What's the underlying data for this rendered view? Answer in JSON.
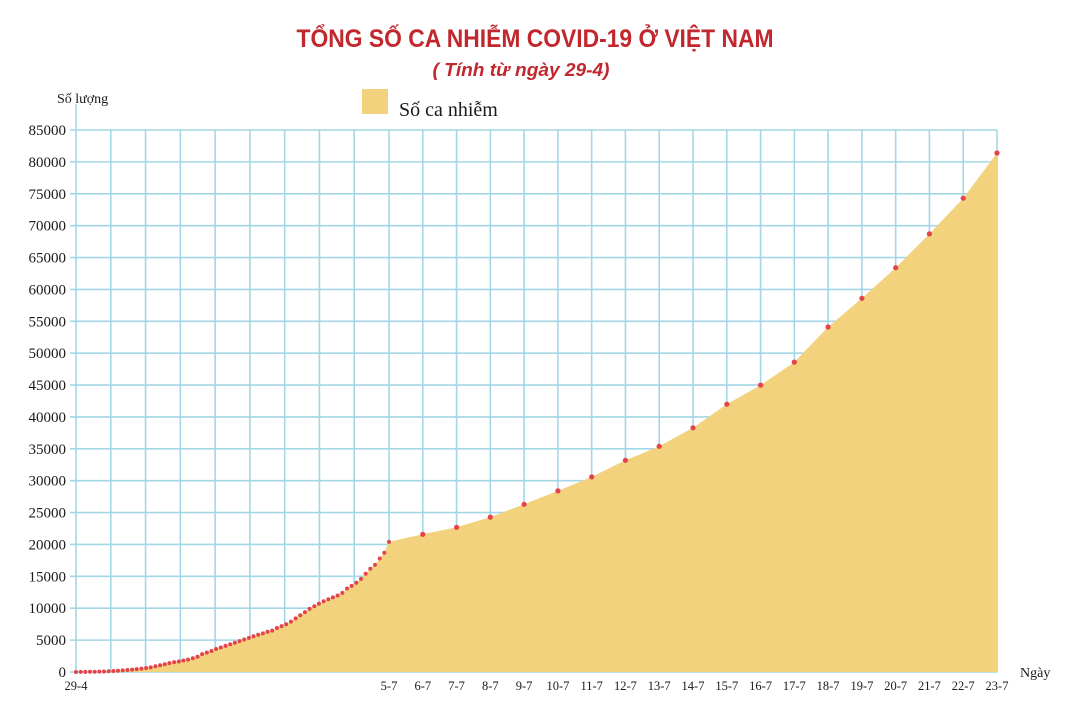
{
  "colors": {
    "title": "#c1272d",
    "grid": "#a3d6e6"
  },
  "chart_data": {
    "type": "area",
    "title": "TỔNG SỐ CA NHIỄM COVID-19 Ở VIỆT NAM",
    "subtitle": "( Tính từ ngày 29-4)",
    "xlabel": "Ngày",
    "ylabel": "Số lượng",
    "ylim": [
      0,
      85000
    ],
    "grid": true,
    "legend_position": "top",
    "y_ticks": [
      0,
      5000,
      10000,
      15000,
      20000,
      25000,
      30000,
      35000,
      40000,
      45000,
      50000,
      55000,
      60000,
      65000,
      70000,
      75000,
      80000,
      85000
    ],
    "x_tick_labels": [
      "29-4",
      "5-7",
      "6-7",
      "7-7",
      "8-7",
      "9-7",
      "10-7",
      "11-7",
      "12-7",
      "13-7",
      "14-7",
      "15-7",
      "16-7",
      "17-7",
      "18-7",
      "19-7",
      "20-7",
      "21-7",
      "22-7",
      "23-7"
    ],
    "series": [
      {
        "name": "Số ca nhiễm",
        "color": "#f2d27c",
        "marker_color": "#e4434b",
        "x": [
          "29-4",
          "30-4",
          "1-5",
          "2-5",
          "3-5",
          "4-5",
          "5-5",
          "6-5",
          "7-5",
          "8-5",
          "9-5",
          "10-5",
          "11-5",
          "12-5",
          "13-5",
          "14-5",
          "15-5",
          "16-5",
          "17-5",
          "18-5",
          "19-5",
          "20-5",
          "21-5",
          "22-5",
          "23-5",
          "24-5",
          "25-5",
          "26-5",
          "27-5",
          "28-5",
          "29-5",
          "30-5",
          "31-5",
          "1-6",
          "2-6",
          "3-6",
          "4-6",
          "5-6",
          "6-6",
          "7-6",
          "8-6",
          "9-6",
          "10-6",
          "11-6",
          "12-6",
          "13-6",
          "14-6",
          "15-6",
          "16-6",
          "17-6",
          "18-6",
          "19-6",
          "20-6",
          "21-6",
          "22-6",
          "23-6",
          "24-6",
          "25-6",
          "26-6",
          "27-6",
          "28-6",
          "29-6",
          "30-6",
          "1-7",
          "2-7",
          "3-7",
          "4-7",
          "5-7",
          "6-7",
          "7-7",
          "8-7",
          "9-7",
          "10-7",
          "11-7",
          "12-7",
          "13-7",
          "14-7",
          "15-7",
          "16-7",
          "17-7",
          "18-7",
          "19-7",
          "20-7",
          "21-7",
          "22-7",
          "23-7"
        ],
        "y": [
          0,
          10,
          20,
          30,
          40,
          60,
          80,
          110,
          160,
          200,
          250,
          310,
          380,
          450,
          540,
          620,
          720,
          900,
          1050,
          1200,
          1400,
          1550,
          1650,
          1800,
          1950,
          2150,
          2400,
          2800,
          3050,
          3300,
          3600,
          3850,
          4100,
          4350,
          4600,
          4850,
          5100,
          5350,
          5600,
          5850,
          6050,
          6300,
          6500,
          6900,
          7200,
          7500,
          7900,
          8400,
          8900,
          9400,
          9900,
          10300,
          10700,
          11100,
          11400,
          11700,
          12000,
          12400,
          13100,
          13500,
          14000,
          14600,
          15400,
          16200,
          16800,
          17800,
          18700,
          20400,
          21600,
          22700,
          24300,
          26300,
          28400,
          30600,
          33200,
          35400,
          38300,
          42000,
          45000,
          48600,
          54100,
          58600,
          63400,
          68700,
          74300,
          81400
        ]
      }
    ]
  }
}
